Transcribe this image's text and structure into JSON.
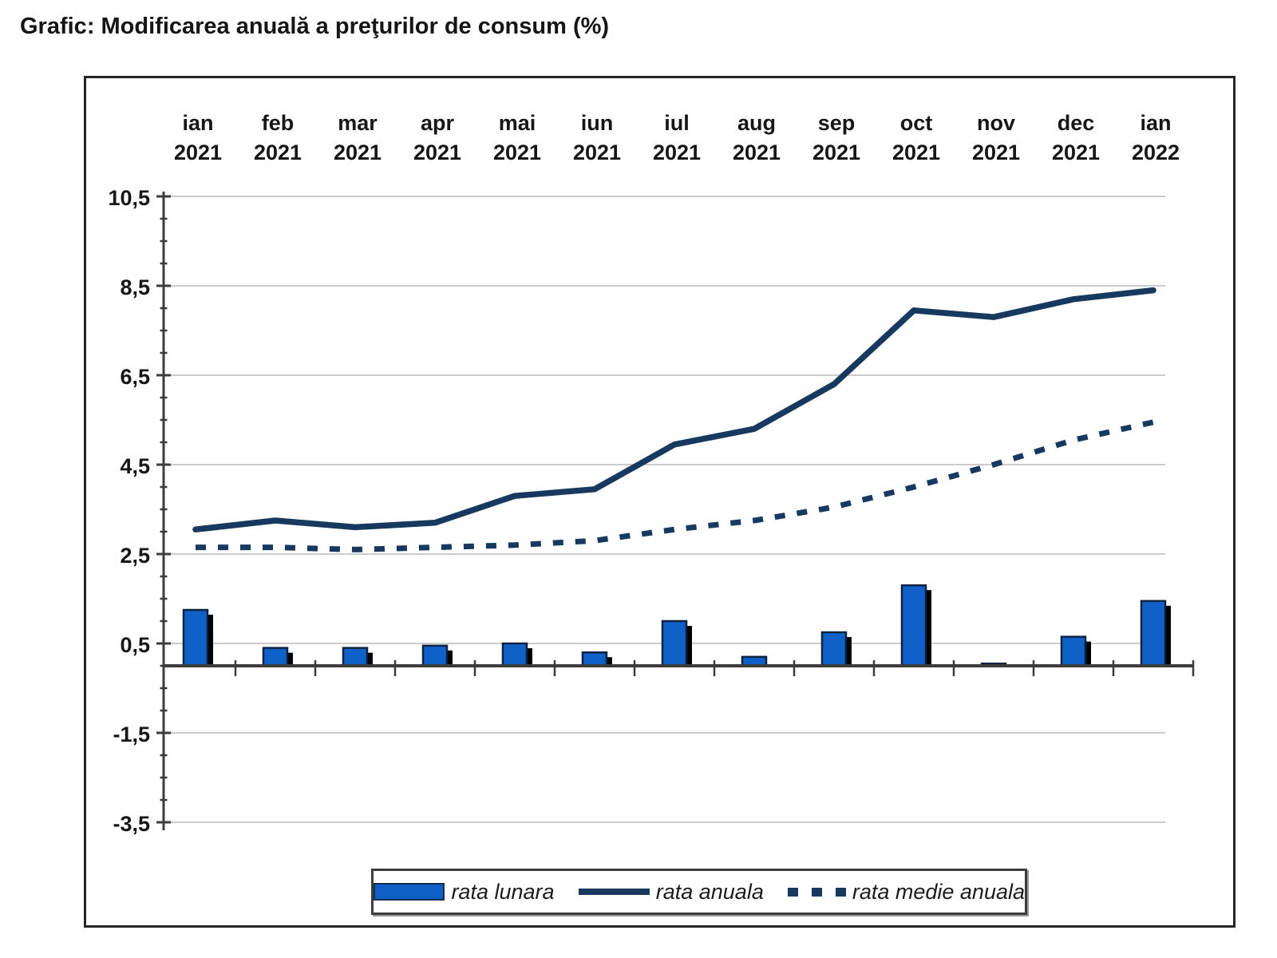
{
  "title": "Grafic: Modificarea anuală a preţurilor de consum (%)",
  "chart_data": {
    "type": "combo",
    "title": "Grafic: Modificarea anuală a preţurilor de consum (%)",
    "categories": [
      {
        "month": "ian",
        "year": "2021"
      },
      {
        "month": "feb",
        "year": "2021"
      },
      {
        "month": "mar",
        "year": "2021"
      },
      {
        "month": "apr",
        "year": "2021"
      },
      {
        "month": "mai",
        "year": "2021"
      },
      {
        "month": "iun",
        "year": "2021"
      },
      {
        "month": "iul",
        "year": "2021"
      },
      {
        "month": "aug",
        "year": "2021"
      },
      {
        "month": "sep",
        "year": "2021"
      },
      {
        "month": "oct",
        "year": "2021"
      },
      {
        "month": "nov",
        "year": "2021"
      },
      {
        "month": "dec",
        "year": "2021"
      },
      {
        "month": "ian",
        "year": "2022"
      }
    ],
    "series": [
      {
        "name": "rata lunara",
        "type": "bar",
        "style": "solid-fill",
        "color": "#0F61C7",
        "values": [
          1.25,
          0.4,
          0.4,
          0.45,
          0.5,
          0.3,
          1.0,
          0.2,
          0.75,
          1.8,
          0.05,
          0.65,
          1.45
        ]
      },
      {
        "name": "rata anuala",
        "type": "line",
        "style": "solid",
        "color": "#17395F",
        "values": [
          3.05,
          3.25,
          3.1,
          3.2,
          3.8,
          3.95,
          4.95,
          5.3,
          6.3,
          7.95,
          7.8,
          8.2,
          8.4
        ]
      },
      {
        "name": "rata medie anuala",
        "type": "line",
        "style": "dashed",
        "color": "#17395F",
        "values": [
          2.65,
          2.65,
          2.6,
          2.65,
          2.7,
          2.8,
          3.05,
          3.25,
          3.55,
          4.0,
          4.5,
          5.05,
          5.45
        ]
      }
    ],
    "y_axis": {
      "ticks": [
        "10,5",
        "8,5",
        "6,5",
        "4,5",
        "2,5",
        "0,5",
        "-1,5",
        "-3,5"
      ],
      "tick_values": [
        10.5,
        8.5,
        6.5,
        4.5,
        2.5,
        0.5,
        -1.5,
        -3.5
      ],
      "minor_step": 0.5,
      "ylim": [
        -3.7,
        10.6
      ],
      "grid": true
    },
    "xlabel": "",
    "ylabel": "",
    "legend_position": "bottom",
    "colors": {
      "bar_fill": "#0F61C7",
      "bar_edge": "#0A2240",
      "line": "#17395F",
      "gridline": "#CBCBCB",
      "axis": "#3C3C3C"
    }
  }
}
